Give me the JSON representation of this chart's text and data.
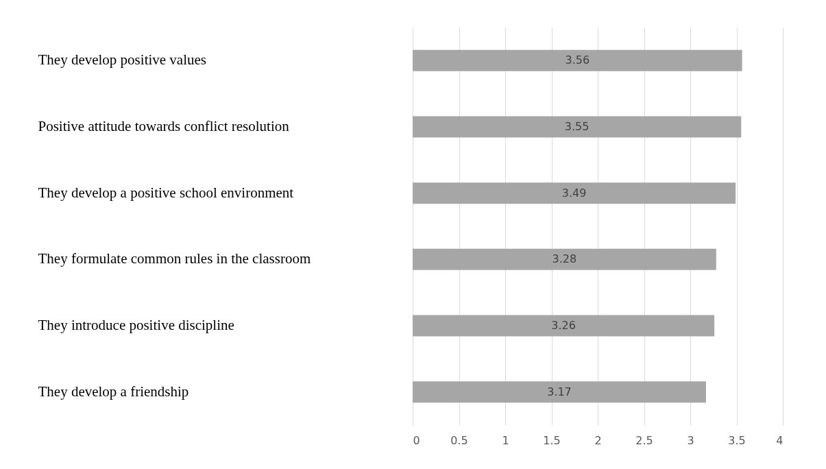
{
  "chart_data": {
    "type": "bar",
    "orientation": "horizontal",
    "categories": [
      "They develop positive values",
      "Positive attitude towards conflict resolution",
      "They develop a positive school environment",
      "They formulate common rules in the classroom",
      "They introduce positive discipline",
      "They develop a friendship"
    ],
    "values": [
      3.56,
      3.55,
      3.49,
      3.28,
      3.26,
      3.17
    ],
    "color": "#a6a6a6",
    "xlim": [
      0,
      4
    ],
    "xticks": [
      0,
      0.5,
      1,
      1.5,
      2,
      2.5,
      3,
      3.5,
      4
    ],
    "grid": "x",
    "data_labels": true
  }
}
